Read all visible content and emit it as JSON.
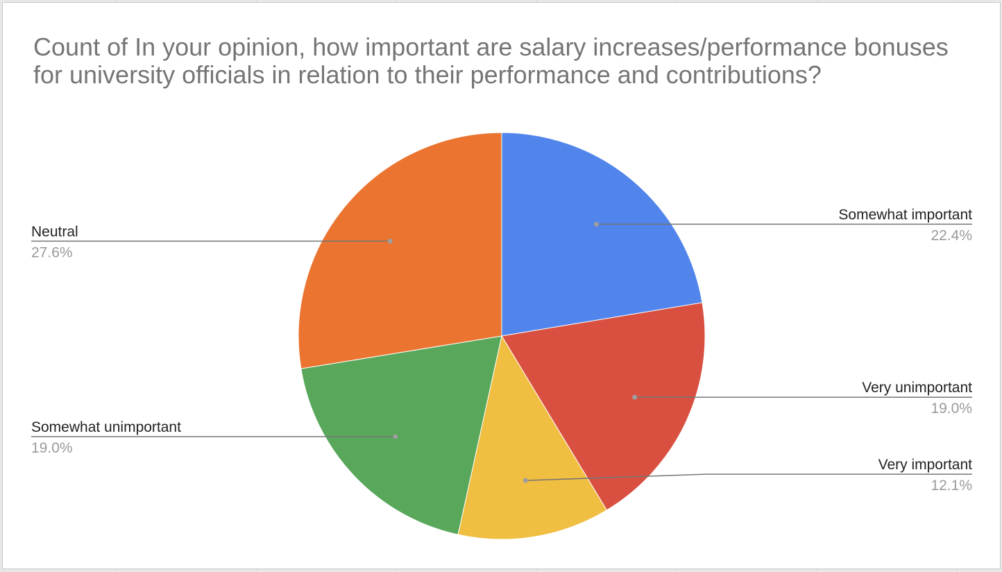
{
  "chart_data": {
    "type": "pie",
    "title": "Count of In your opinion, how important are salary increases/performance bonuses for university officials in relation to their performance and contributions?",
    "slices": [
      {
        "label": "Somewhat important",
        "value": 22.4,
        "display": "22.4%",
        "color": "#5185eb"
      },
      {
        "label": "Very unimportant",
        "value": 19.0,
        "display": "19.0%",
        "color": "#d95040"
      },
      {
        "label": "Very important",
        "value": 12.1,
        "display": "12.1%",
        "color": "#f0be41"
      },
      {
        "label": "Somewhat unimportant",
        "value": 19.0,
        "display": "19.0%",
        "color": "#58a75b"
      },
      {
        "label": "Neutral",
        "value": 27.6,
        "display": "27.6%",
        "color": "#ea7430"
      }
    ],
    "legend": "none",
    "label_style": "outside callouts"
  }
}
